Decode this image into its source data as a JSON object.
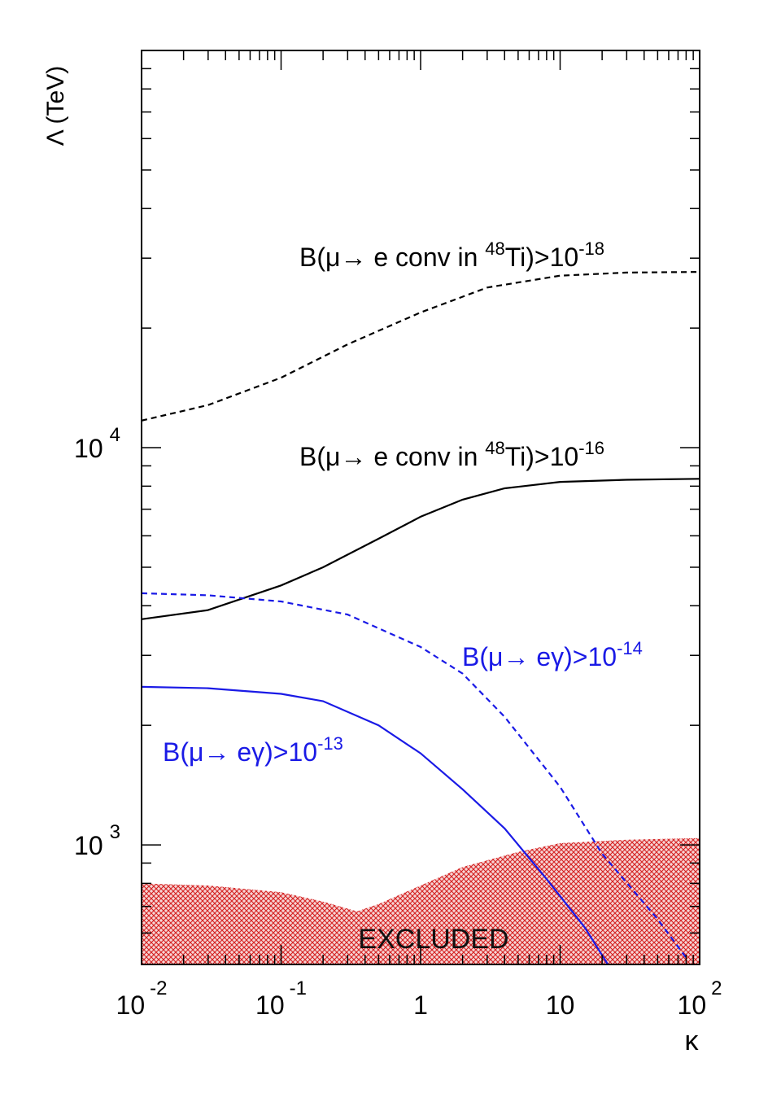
{
  "chart_data": {
    "type": "line",
    "xlabel": "κ",
    "ylabel": "Λ (TeV)",
    "x_scale": "log",
    "y_scale": "log",
    "xlim": [
      0.01,
      100
    ],
    "ylim": [
      500,
      100000
    ],
    "grid": false,
    "x_ticks": [
      {
        "value": 0.01,
        "base": "10",
        "exp": "-2"
      },
      {
        "value": 0.1,
        "base": "10",
        "exp": "-1"
      },
      {
        "value": 1,
        "base": "1",
        "exp": ""
      },
      {
        "value": 10,
        "base": "10",
        "exp": ""
      },
      {
        "value": 100,
        "base": "10",
        "exp": "2"
      }
    ],
    "y_ticks": [
      {
        "value": 1000,
        "base": "10",
        "exp": "3"
      },
      {
        "value": 10000,
        "base": "10",
        "exp": "4"
      }
    ],
    "series": [
      {
        "label_parts": {
          "pre": "B(μ→ e conv in ",
          "sup1": "48",
          "mid": "Ti)>10",
          "sup2": "-18"
        },
        "color": "#000000",
        "dash": true,
        "x": [
          0.01,
          0.03,
          0.1,
          0.3,
          1,
          3,
          10,
          30,
          100
        ],
        "y": [
          11700,
          12800,
          15000,
          18200,
          21900,
          25300,
          27100,
          27600,
          27700
        ]
      },
      {
        "label_parts": {
          "pre": "B(μ→ e conv in ",
          "sup1": "48",
          "mid": "Ti)>10",
          "sup2": "-16"
        },
        "color": "#000000",
        "dash": false,
        "x": [
          0.01,
          0.03,
          0.1,
          0.2,
          0.5,
          1,
          2,
          4,
          10,
          30,
          100
        ],
        "y": [
          3700,
          3900,
          4500,
          5000,
          5900,
          6700,
          7400,
          7900,
          8200,
          8300,
          8350
        ]
      },
      {
        "label_parts": {
          "pre": "B(μ→ eγ)>10",
          "sup1": "",
          "mid": "",
          "sup2": "-14"
        },
        "color": "#1a1ae6",
        "dash": true,
        "x": [
          0.01,
          0.03,
          0.1,
          0.3,
          1,
          2,
          4,
          10,
          20,
          50,
          80
        ],
        "y": [
          4300,
          4250,
          4100,
          3800,
          3150,
          2700,
          2100,
          1400,
          950,
          650,
          520
        ]
      },
      {
        "label_parts": {
          "pre": "B(μ→ eγ)>10",
          "sup1": "",
          "mid": "",
          "sup2": "-13"
        },
        "color": "#1a1ae6",
        "dash": false,
        "x": [
          0.01,
          0.03,
          0.1,
          0.2,
          0.5,
          1,
          2,
          4,
          8,
          15,
          22
        ],
        "y": [
          2500,
          2480,
          2400,
          2300,
          2000,
          1700,
          1380,
          1100,
          820,
          620,
          500
        ]
      }
    ],
    "excluded_region": {
      "label": "EXCLUDED",
      "color": "#d42020",
      "x": [
        0.01,
        0.03,
        0.1,
        0.2,
        0.35,
        0.5,
        1,
        2,
        5,
        10,
        30,
        100
      ],
      "y": [
        800,
        790,
        760,
        720,
        680,
        710,
        790,
        880,
        960,
        1010,
        1030,
        1040
      ]
    }
  }
}
